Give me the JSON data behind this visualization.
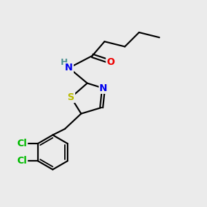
{
  "background_color": "#ebebeb",
  "bond_color": "#000000",
  "atom_colors": {
    "N": "#0000ee",
    "O": "#ee0000",
    "S": "#bbbb00",
    "Cl": "#00bb00",
    "H": "#4a9090",
    "C": "#000000"
  },
  "bond_width": 1.6,
  "font_size_atoms": 10,
  "font_size_H": 9
}
